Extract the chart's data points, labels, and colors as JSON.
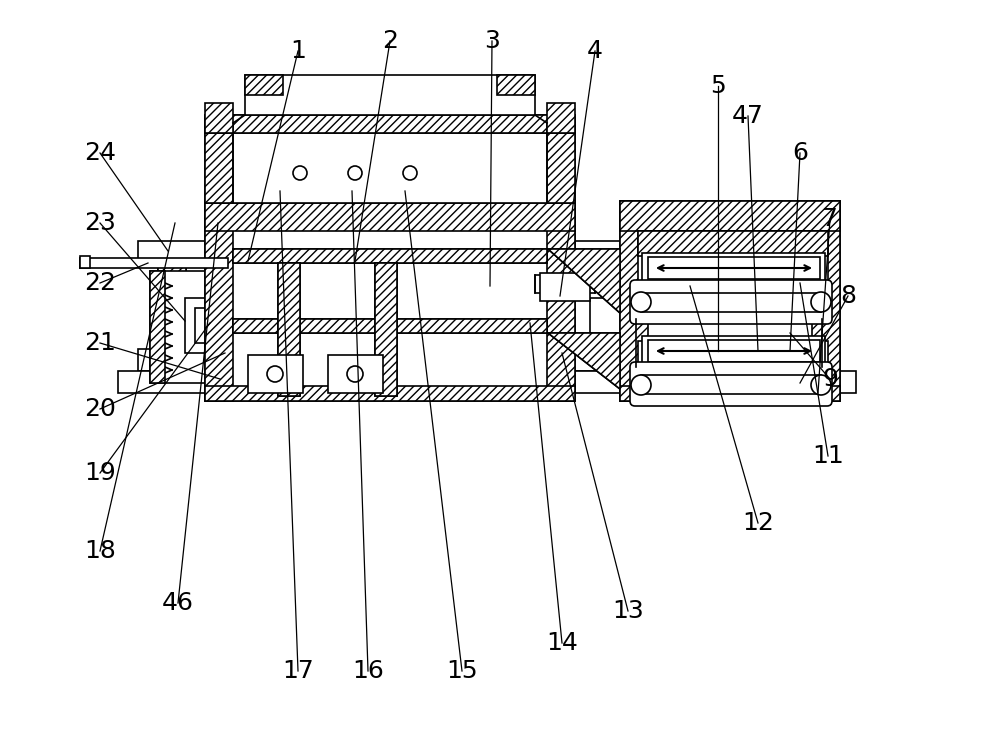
{
  "bg_color": "#ffffff",
  "lc": "#000000",
  "lw": 1.2,
  "labels_data": [
    [
      1,
      298,
      700,
      248,
      490
    ],
    [
      2,
      390,
      710,
      355,
      490
    ],
    [
      3,
      492,
      710,
      490,
      465
    ],
    [
      4,
      595,
      700,
      560,
      455
    ],
    [
      5,
      718,
      665,
      718,
      400
    ],
    [
      6,
      800,
      598,
      790,
      400
    ],
    [
      7,
      830,
      532,
      818,
      358
    ],
    [
      8,
      848,
      455,
      800,
      368
    ],
    [
      9,
      830,
      372,
      790,
      418
    ],
    [
      11,
      828,
      295,
      800,
      468
    ],
    [
      12,
      758,
      228,
      690,
      465
    ],
    [
      13,
      628,
      140,
      562,
      398
    ],
    [
      14,
      562,
      108,
      530,
      428
    ],
    [
      15,
      462,
      80,
      405,
      560
    ],
    [
      16,
      368,
      80,
      352,
      560
    ],
    [
      17,
      298,
      80,
      280,
      560
    ],
    [
      18,
      100,
      200,
      175,
      528
    ],
    [
      19,
      100,
      278,
      210,
      428
    ],
    [
      20,
      100,
      342,
      225,
      398
    ],
    [
      21,
      100,
      408,
      220,
      372
    ],
    [
      22,
      100,
      468,
      148,
      488
    ],
    [
      23,
      100,
      528,
      185,
      430
    ],
    [
      24,
      100,
      598,
      168,
      500
    ],
    [
      46,
      178,
      148,
      218,
      528
    ],
    [
      47,
      748,
      635,
      758,
      400
    ]
  ]
}
